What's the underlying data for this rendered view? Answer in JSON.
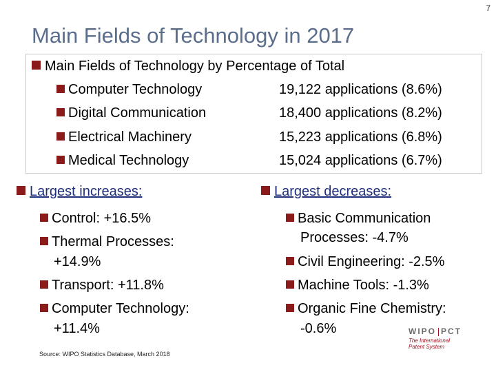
{
  "page_number": "7",
  "title": "Main Fields of Technology in 2017",
  "top_box": {
    "heading": "Main Fields of Technology by Percentage of Total",
    "items": [
      {
        "label": "Computer Technology",
        "value": "19,122 applications (8.6%)"
      },
      {
        "label": "Digital Communication",
        "value": "18,400 applications (8.2%)"
      },
      {
        "label": "Electrical Machinery",
        "value": "15,223 applications (6.8%)"
      },
      {
        "label": "Medical Technology",
        "value": "15,024 applications (6.7%)"
      }
    ]
  },
  "increases": {
    "heading": "Largest increases:",
    "items": [
      {
        "line1": "Control: +16.5%"
      },
      {
        "line1": "Thermal Processes:",
        "line2": "+14.9%"
      },
      {
        "line1": "Transport: +11.8%"
      },
      {
        "line1": "Computer Technology:",
        "line2": "+11.4%"
      }
    ]
  },
  "decreases": {
    "heading": "Largest decreases:",
    "items": [
      {
        "line1": "Basic Communication",
        "line2": "Processes: -4.7%"
      },
      {
        "line1": "Civil Engineering: -2.5%"
      },
      {
        "line1": "Machine Tools: -1.3%"
      },
      {
        "line1": "Organic Fine Chemistry:",
        "line2": "-0.6%"
      }
    ]
  },
  "source": "Source: WIPO Statistics Database, March 2018",
  "logo": {
    "left": "WIPO",
    "right": "PCT",
    "sub1": "The International",
    "sub2": "Patent System"
  },
  "colors": {
    "bullet": "#8b1a1a",
    "title": "#5a6e8c",
    "link_blue": "#1f2f7a"
  }
}
